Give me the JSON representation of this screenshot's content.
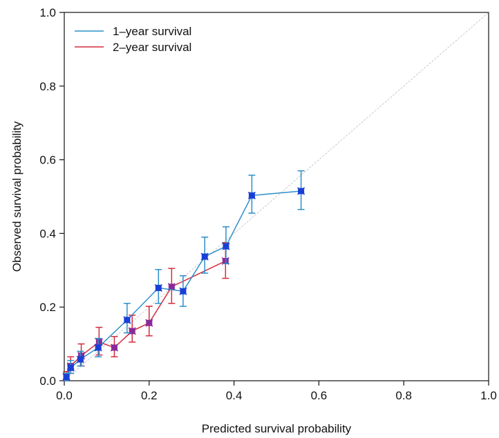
{
  "chart_data": {
    "type": "line",
    "xlabel": "Predicted survival probability",
    "ylabel": "Observed survival probability",
    "xlim": [
      0,
      1
    ],
    "ylim": [
      0,
      1
    ],
    "xticks": [
      "0.0",
      "0.2",
      "0.4",
      "0.6",
      "0.8",
      "1.0"
    ],
    "yticks": [
      "0.0",
      "0.2",
      "0.4",
      "0.6",
      "0.8",
      "1.0"
    ],
    "grid": false,
    "legend_position": "top-left",
    "reference_line": "diagonal y = x",
    "series": [
      {
        "name": "1–year survival",
        "color": "#2a8fc8",
        "marker_color": "#1a3fd6",
        "points": [
          {
            "x": 0.005,
            "y": 0.01,
            "lo": 0.0,
            "hi": 0.02
          },
          {
            "x": 0.015,
            "y": 0.035,
            "lo": 0.02,
            "hi": 0.055
          },
          {
            "x": 0.038,
            "y": 0.058,
            "lo": 0.04,
            "hi": 0.08
          },
          {
            "x": 0.08,
            "y": 0.09,
            "lo": 0.065,
            "hi": 0.115
          },
          {
            "x": 0.148,
            "y": 0.165,
            "lo": 0.13,
            "hi": 0.21
          },
          {
            "x": 0.222,
            "y": 0.252,
            "lo": 0.21,
            "hi": 0.302
          },
          {
            "x": 0.28,
            "y": 0.243,
            "lo": 0.202,
            "hi": 0.285
          },
          {
            "x": 0.331,
            "y": 0.337,
            "lo": 0.292,
            "hi": 0.39
          },
          {
            "x": 0.381,
            "y": 0.365,
            "lo": 0.318,
            "hi": 0.418
          },
          {
            "x": 0.442,
            "y": 0.503,
            "lo": 0.455,
            "hi": 0.558
          },
          {
            "x": 0.558,
            "y": 0.515,
            "lo": 0.465,
            "hi": 0.57
          }
        ]
      },
      {
        "name": "2–year survival",
        "color": "#d42a3c",
        "marker_color": "#8a2a9a",
        "points": [
          {
            "x": 0.005,
            "y": 0.012,
            "lo": 0.0,
            "hi": 0.025
          },
          {
            "x": 0.015,
            "y": 0.04,
            "lo": 0.02,
            "hi": 0.065
          },
          {
            "x": 0.04,
            "y": 0.068,
            "lo": 0.04,
            "hi": 0.1
          },
          {
            "x": 0.082,
            "y": 0.105,
            "lo": 0.07,
            "hi": 0.145
          },
          {
            "x": 0.118,
            "y": 0.09,
            "lo": 0.065,
            "hi": 0.12
          },
          {
            "x": 0.16,
            "y": 0.135,
            "lo": 0.105,
            "hi": 0.178
          },
          {
            "x": 0.2,
            "y": 0.157,
            "lo": 0.122,
            "hi": 0.202
          },
          {
            "x": 0.253,
            "y": 0.255,
            "lo": 0.21,
            "hi": 0.305
          },
          {
            "x": 0.38,
            "y": 0.325,
            "lo": 0.278,
            "hi": 0.375
          }
        ]
      }
    ]
  }
}
